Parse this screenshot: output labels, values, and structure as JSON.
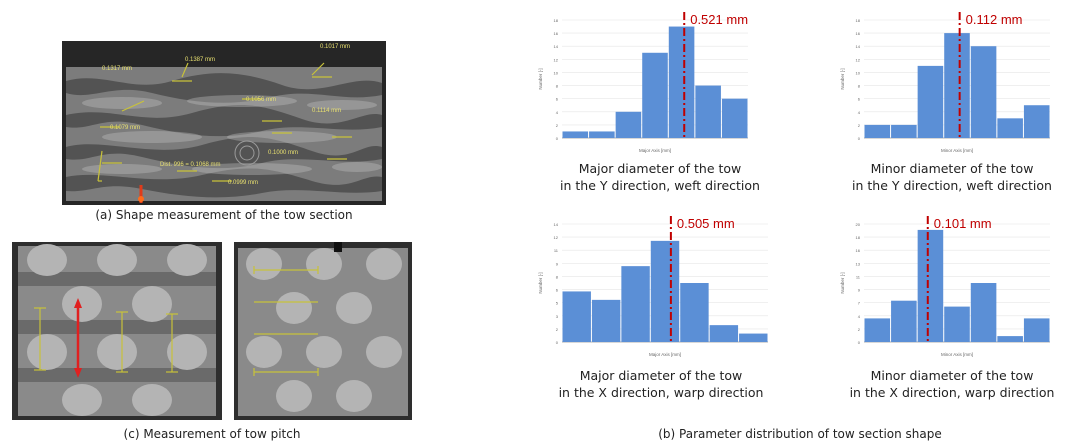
{
  "captions": {
    "a": "(a) Shape measurement of the tow section",
    "b": "(b) Parameter distribution of tow section shape",
    "c": "(c) Measurement of tow pitch"
  },
  "tow_section_labels": [
    "0.1317 mm",
    "0.1387 mm",
    "0.1017 mm",
    "0.1056 mm",
    "Dist. 996 = 0.1068 mm",
    "0.1114 mm",
    "0.1079 mm",
    "0.1000 mm",
    "0.0999 mm"
  ],
  "charts": [
    {
      "caption_lines": [
        "Major diameter of the tow",
        "in the Y direction, weft direction"
      ],
      "marker_label": "0.521 mm"
    },
    {
      "caption_lines": [
        "Minor diameter of the tow",
        "in the Y direction, weft direction"
      ],
      "marker_label": "0.112 mm"
    },
    {
      "caption_lines": [
        "Major diameter of the tow",
        "in the X direction, warp direction"
      ],
      "marker_label": "0.505 mm"
    },
    {
      "caption_lines": [
        "Minor diameter of the tow",
        "in the X direction, warp direction"
      ],
      "marker_label": "0.101 mm"
    }
  ],
  "chart_data": [
    {
      "type": "bar",
      "values": [
        1,
        1,
        4,
        13,
        17,
        8,
        6
      ],
      "ylim": [
        0,
        18
      ],
      "marker": {
        "position": 4.6,
        "label": "0.521 mm"
      },
      "ylabel": "Number [-]",
      "xlabel": "Major Axis [mm]",
      "colors": {
        "bar": "#5b8fd6",
        "marker": "#c00000"
      }
    },
    {
      "type": "bar",
      "values": [
        2,
        2,
        11,
        16,
        14,
        3,
        5
      ],
      "ylim": [
        0,
        18
      ],
      "marker": {
        "position": 3.6,
        "label": "0.112 mm"
      },
      "ylabel": "Number [-]",
      "xlabel": "Minor Axis [mm]",
      "colors": {
        "bar": "#5b8fd6",
        "marker": "#c00000"
      }
    },
    {
      "type": "bar",
      "values": [
        6,
        5,
        9,
        12,
        7,
        2,
        1
      ],
      "ylim": [
        0,
        14
      ],
      "marker": {
        "position": 3.7,
        "label": "0.505 mm"
      },
      "ylabel": "Number [-]",
      "xlabel": "Major Axis [mm]",
      "colors": {
        "bar": "#5b8fd6",
        "marker": "#c00000"
      }
    },
    {
      "type": "bar",
      "values": [
        4,
        7,
        19,
        6,
        10,
        1,
        4
      ],
      "ylim": [
        0,
        20
      ],
      "marker": {
        "position": 2.4,
        "label": "0.101 mm"
      },
      "ylabel": "Number [-]",
      "xlabel": "Minor Axis [mm]",
      "colors": {
        "bar": "#5b8fd6",
        "marker": "#c00000"
      }
    }
  ]
}
